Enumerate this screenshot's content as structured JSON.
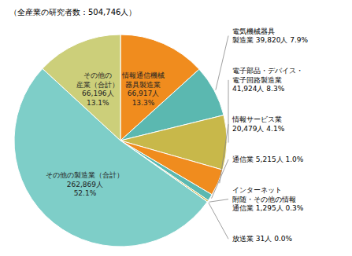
{
  "chart_data": {
    "type": "pie",
    "title": "（全産業の研究者数：504,746人）",
    "values": [
      66917,
      39820,
      41924,
      20479,
      5215,
      1295,
      31,
      262869,
      66196
    ],
    "value_labels": [
      "情報通信機械\n器具製造業\n66,917人\n13.3%",
      "電気機械器具\n製造業 39,820人 7.9%",
      "電子部品・デバイス・\n電子回路製造業\n41,924人 8.3%",
      "情報サービス業\n20,479人 4.1%",
      "通信業 5,215人 1.0%",
      "インターネット\n附随・その他の情報\n通信業 1,295人 0.3%",
      "放送業 31人 0.0%",
      "その他の製造業（合計）\n262,869人\n52.1%",
      "その他の\n産業（合計）\n66,196人\n13.1%"
    ],
    "colors": [
      "#f08c1e",
      "#5bb8b0",
      "#c8b84a",
      "#f08c1e",
      "#5bb8b0",
      "#c8b84a",
      "#8a8a50",
      "#7ecec8",
      "#cccf7a"
    ],
    "data_labels": true
  }
}
